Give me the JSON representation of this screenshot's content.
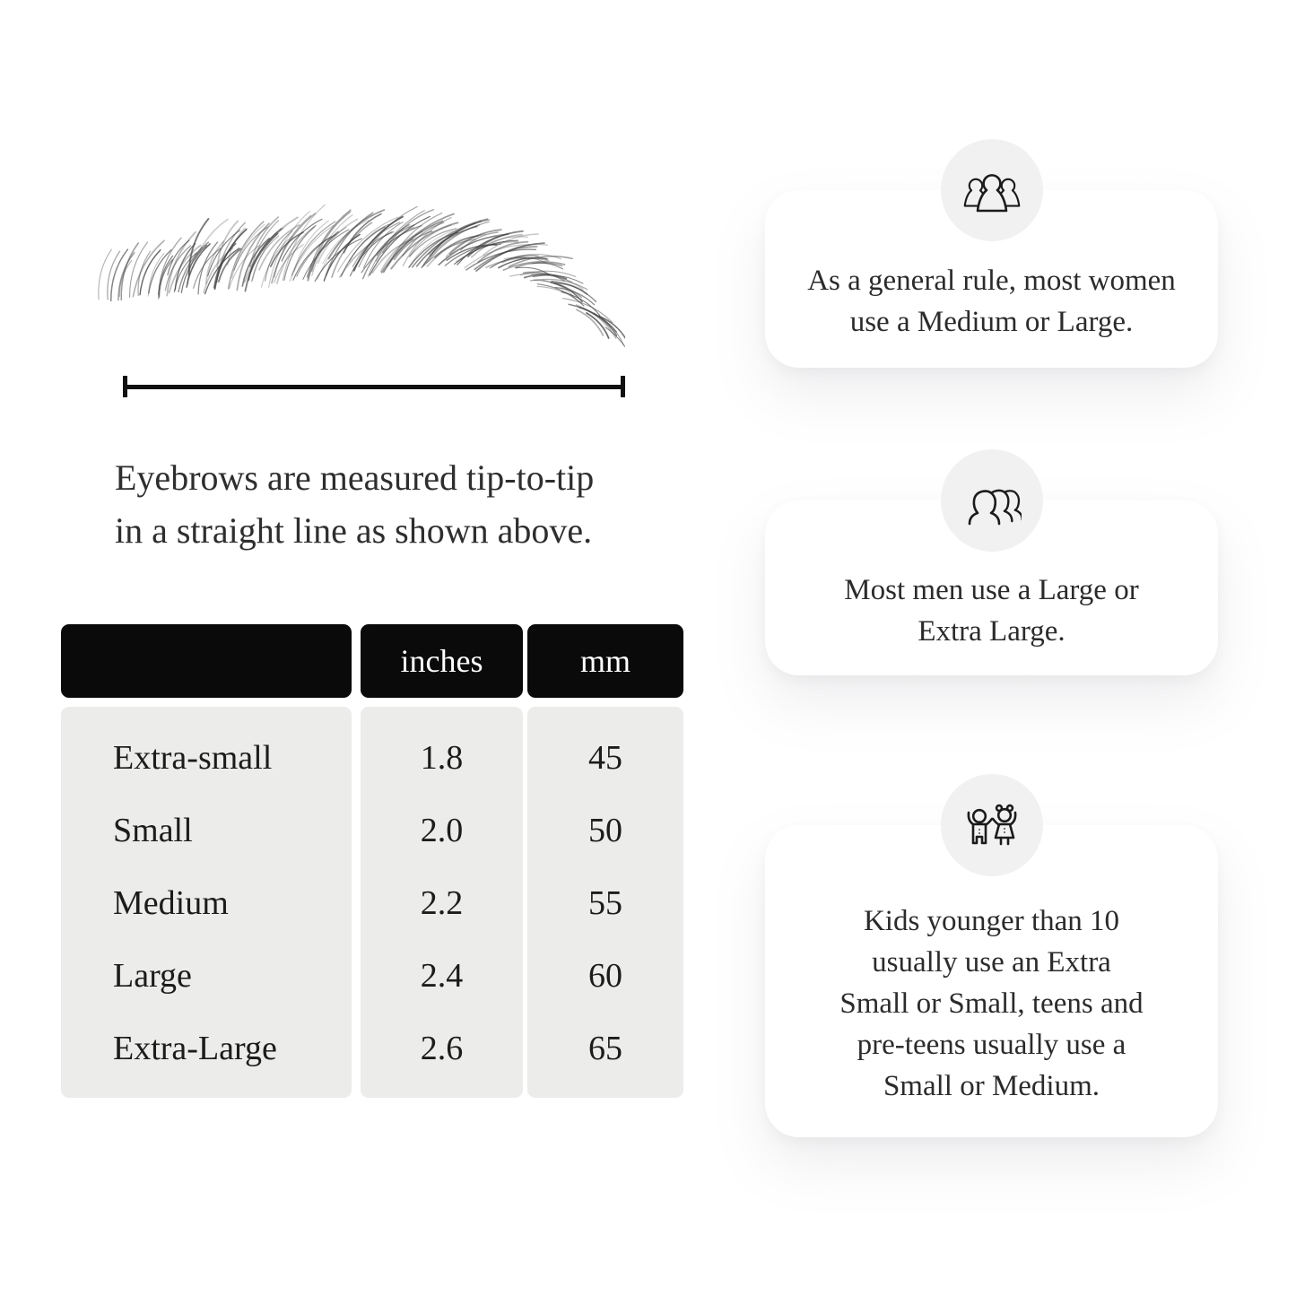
{
  "diagram": {
    "illustration": "eyebrow-sketch",
    "caption_lines": [
      "Eyebrows are measured tip-to-tip",
      "in a straight line as shown above."
    ]
  },
  "table": {
    "headers": {
      "size": "",
      "inches": "inches",
      "mm": "mm"
    },
    "rows": [
      {
        "label": "Extra-small",
        "inches": "1.8",
        "mm": "45"
      },
      {
        "label": "Small",
        "inches": "2.0",
        "mm": "50"
      },
      {
        "label": "Medium",
        "inches": "2.2",
        "mm": "55"
      },
      {
        "label": "Large",
        "inches": "2.4",
        "mm": "60"
      },
      {
        "label": "Extra-Large",
        "inches": "2.6",
        "mm": "65"
      }
    ]
  },
  "cards": {
    "women": {
      "icon": "women-group-icon",
      "lines": [
        "As a general rule, most women",
        "use a Medium or Large."
      ]
    },
    "men": {
      "icon": "men-group-icon",
      "lines": [
        "Most men use a Large or",
        "Extra Large."
      ]
    },
    "kids": {
      "icon": "kids-icon",
      "lines": [
        "Kids younger than 10",
        "usually use an Extra",
        "Small or Small, teens and",
        "pre-teens usually use a",
        "Small or Medium."
      ]
    }
  },
  "colors": {
    "background": "#ffffff",
    "table_header_bg": "#0a0a0a",
    "table_header_text": "#ffffff",
    "table_body_bg": "#ececeb",
    "text_dark": "#2b2b2b",
    "icon_circle_bg": "#f1f1f2",
    "line_black": "#111111"
  }
}
